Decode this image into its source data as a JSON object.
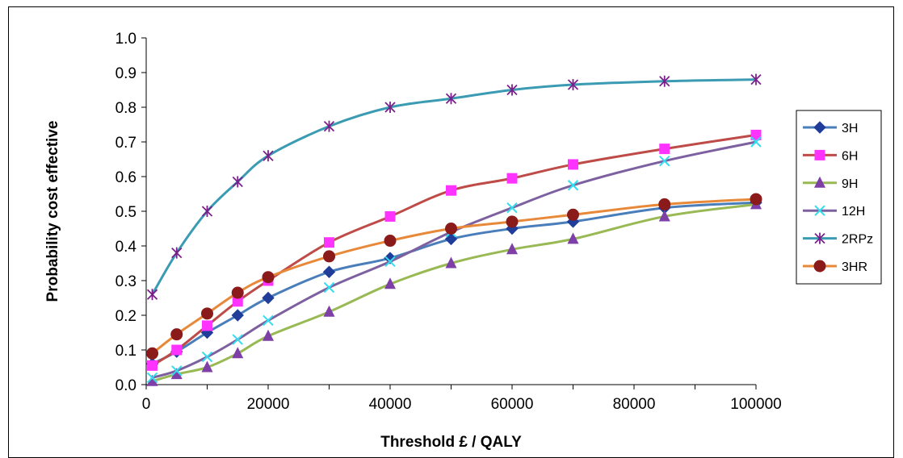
{
  "chart_data": {
    "type": "line",
    "title": "",
    "xlabel": "Threshold £ / QALY",
    "ylabel": "Probability cost effective",
    "xlim": [
      0,
      100000
    ],
    "ylim": [
      0,
      1
    ],
    "x_ticks": [
      "0",
      "20000",
      "40000",
      "60000",
      "80000",
      "100000"
    ],
    "y_ticks": [
      "0.0",
      "0.1",
      "0.2",
      "0.3",
      "0.4",
      "0.5",
      "0.6",
      "0.7",
      "0.8",
      "0.9",
      "1.0"
    ],
    "grid": false,
    "legend_position": "right",
    "x": [
      1000,
      5000,
      10000,
      15000,
      20000,
      30000,
      40000,
      50000,
      60000,
      70000,
      85000,
      100000
    ],
    "series": [
      {
        "name": "3H",
        "line_color": "#4A7EBB",
        "marker": "diamond",
        "marker_color": "#1F3D99",
        "values": [
          0.06,
          0.095,
          0.15,
          0.2,
          0.25,
          0.325,
          0.365,
          0.42,
          0.45,
          0.47,
          0.51,
          0.525
        ]
      },
      {
        "name": "6H",
        "line_color": "#BE4B48",
        "marker": "square",
        "marker_color": "#FF33FF",
        "values": [
          0.055,
          0.1,
          0.17,
          0.24,
          0.3,
          0.41,
          0.485,
          0.56,
          0.595,
          0.635,
          0.68,
          0.72
        ]
      },
      {
        "name": "9H",
        "line_color": "#98B954",
        "marker": "triangle",
        "marker_color": "#7E3FA6",
        "values": [
          0.01,
          0.03,
          0.05,
          0.09,
          0.14,
          0.21,
          0.29,
          0.35,
          0.39,
          0.42,
          0.485,
          0.52
        ]
      },
      {
        "name": "12H",
        "line_color": "#7D60A0",
        "marker": "x",
        "marker_color": "#33DDEE",
        "values": [
          0.02,
          0.04,
          0.08,
          0.13,
          0.185,
          0.28,
          0.355,
          0.44,
          0.51,
          0.575,
          0.645,
          0.7
        ]
      },
      {
        "name": "2RPz",
        "line_color": "#3A9BB3",
        "marker": "star",
        "marker_color": "#7A1F8A",
        "values": [
          0.26,
          0.38,
          0.5,
          0.585,
          0.66,
          0.745,
          0.8,
          0.825,
          0.85,
          0.865,
          0.875,
          0.88
        ]
      },
      {
        "name": "3HR",
        "line_color": "#E8893A",
        "marker": "circle",
        "marker_color": "#8B1A1A",
        "values": [
          0.09,
          0.145,
          0.205,
          0.265,
          0.31,
          0.37,
          0.415,
          0.45,
          0.47,
          0.49,
          0.52,
          0.535
        ]
      }
    ]
  }
}
